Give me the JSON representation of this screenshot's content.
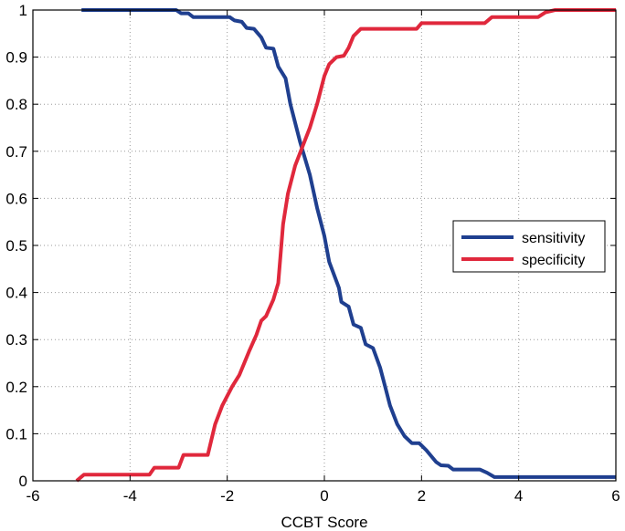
{
  "chart_data": {
    "type": "line",
    "title": "",
    "xlabel": "CCBT Score",
    "ylabel": "",
    "xlim": [
      -6,
      6
    ],
    "ylim": [
      0,
      1
    ],
    "xticks": [
      "-6",
      "-4",
      "-2",
      "0",
      "2",
      "4",
      "6"
    ],
    "yticks": [
      "0",
      "0.1",
      "0.2",
      "0.3",
      "0.4",
      "0.5",
      "0.6",
      "0.7",
      "0.8",
      "0.9",
      "1"
    ],
    "grid": true,
    "legend": "right",
    "series": [
      {
        "name": "sensitivity",
        "color": "#1f3f8f",
        "points": [
          [
            -5.0,
            1.0
          ],
          [
            -3.05,
            1.0
          ],
          [
            -2.95,
            0.993
          ],
          [
            -2.8,
            0.993
          ],
          [
            -2.7,
            0.985
          ],
          [
            -1.95,
            0.985
          ],
          [
            -1.85,
            0.978
          ],
          [
            -1.7,
            0.975
          ],
          [
            -1.6,
            0.962
          ],
          [
            -1.45,
            0.96
          ],
          [
            -1.3,
            0.942
          ],
          [
            -1.2,
            0.92
          ],
          [
            -1.05,
            0.918
          ],
          [
            -0.95,
            0.88
          ],
          [
            -0.8,
            0.855
          ],
          [
            -0.7,
            0.8
          ],
          [
            -0.5,
            0.72
          ],
          [
            -0.3,
            0.65
          ],
          [
            -0.15,
            0.58
          ],
          [
            0.0,
            0.52
          ],
          [
            0.1,
            0.465
          ],
          [
            0.3,
            0.41
          ],
          [
            0.35,
            0.38
          ],
          [
            0.5,
            0.37
          ],
          [
            0.6,
            0.332
          ],
          [
            0.75,
            0.325
          ],
          [
            0.85,
            0.29
          ],
          [
            1.0,
            0.282
          ],
          [
            1.15,
            0.24
          ],
          [
            1.25,
            0.2
          ],
          [
            1.35,
            0.16
          ],
          [
            1.5,
            0.12
          ],
          [
            1.65,
            0.095
          ],
          [
            1.8,
            0.08
          ],
          [
            1.95,
            0.08
          ],
          [
            2.1,
            0.065
          ],
          [
            2.3,
            0.04
          ],
          [
            2.4,
            0.033
          ],
          [
            2.55,
            0.032
          ],
          [
            2.65,
            0.024
          ],
          [
            3.2,
            0.024
          ],
          [
            3.35,
            0.017
          ],
          [
            3.5,
            0.008
          ],
          [
            6.0,
            0.008
          ]
        ]
      },
      {
        "name": "specificity",
        "color": "#e0283c",
        "points": [
          [
            -5.1,
            0.0
          ],
          [
            -4.95,
            0.013
          ],
          [
            -3.6,
            0.013
          ],
          [
            -3.5,
            0.028
          ],
          [
            -3.0,
            0.028
          ],
          [
            -2.9,
            0.055
          ],
          [
            -2.4,
            0.055
          ],
          [
            -2.25,
            0.12
          ],
          [
            -2.1,
            0.16
          ],
          [
            -1.9,
            0.2
          ],
          [
            -1.75,
            0.225
          ],
          [
            -1.55,
            0.275
          ],
          [
            -1.4,
            0.31
          ],
          [
            -1.3,
            0.34
          ],
          [
            -1.2,
            0.35
          ],
          [
            -1.05,
            0.385
          ],
          [
            -0.95,
            0.42
          ],
          [
            -0.85,
            0.545
          ],
          [
            -0.75,
            0.61
          ],
          [
            -0.6,
            0.67
          ],
          [
            -0.45,
            0.71
          ],
          [
            -0.3,
            0.75
          ],
          [
            -0.15,
            0.8
          ],
          [
            0.0,
            0.86
          ],
          [
            0.1,
            0.885
          ],
          [
            0.25,
            0.9
          ],
          [
            0.4,
            0.903
          ],
          [
            0.5,
            0.92
          ],
          [
            0.6,
            0.945
          ],
          [
            0.75,
            0.96
          ],
          [
            1.0,
            0.96
          ],
          [
            1.9,
            0.96
          ],
          [
            2.0,
            0.972
          ],
          [
            3.3,
            0.972
          ],
          [
            3.45,
            0.985
          ],
          [
            4.4,
            0.985
          ],
          [
            4.55,
            0.995
          ],
          [
            4.75,
            1.0
          ],
          [
            6.0,
            1.0
          ]
        ]
      }
    ]
  }
}
